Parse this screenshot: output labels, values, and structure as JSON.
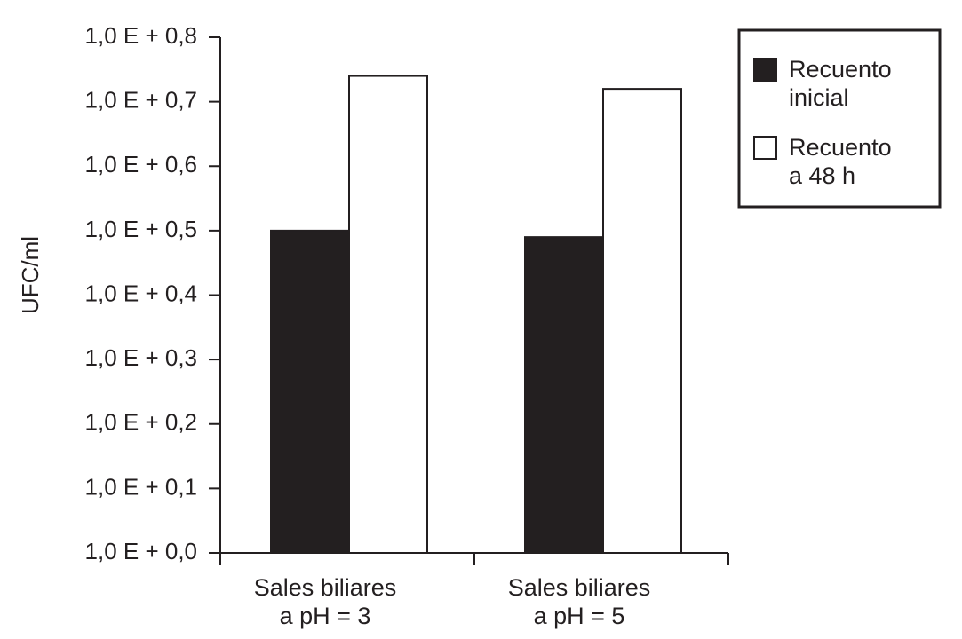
{
  "chart_data": {
    "type": "bar",
    "y_label": "UFC/ml",
    "categories": [
      "Sales biliares\na pH = 3",
      "Sales biliares\na pH = 5"
    ],
    "series": [
      {
        "name": "Recuento\ninicial",
        "color": "#231f20",
        "values": [
          0.5,
          0.49
        ]
      },
      {
        "name": "Recuento\na 48 h",
        "color": "#ffffff",
        "values": [
          0.74,
          0.72
        ]
      }
    ],
    "ylim": [
      0,
      0.8
    ],
    "yticks": [
      {
        "value": 0,
        "label": "1,0 E + 0,0"
      },
      {
        "value": 0.1,
        "label": "1,0 E + 0,1"
      },
      {
        "value": 0.2,
        "label": "1,0 E + 0,2"
      },
      {
        "value": 0.3,
        "label": "1,0 E + 0,3"
      },
      {
        "value": 0.4,
        "label": "1,0 E + 0,4"
      },
      {
        "value": 0.5,
        "label": "1,0 E + 0,5"
      },
      {
        "value": 0.6,
        "label": "1,0 E + 0,6"
      },
      {
        "value": 0.7,
        "label": "1,0 E + 0,7"
      },
      {
        "value": 0.8,
        "label": "1,0 E + 0,8"
      }
    ]
  }
}
